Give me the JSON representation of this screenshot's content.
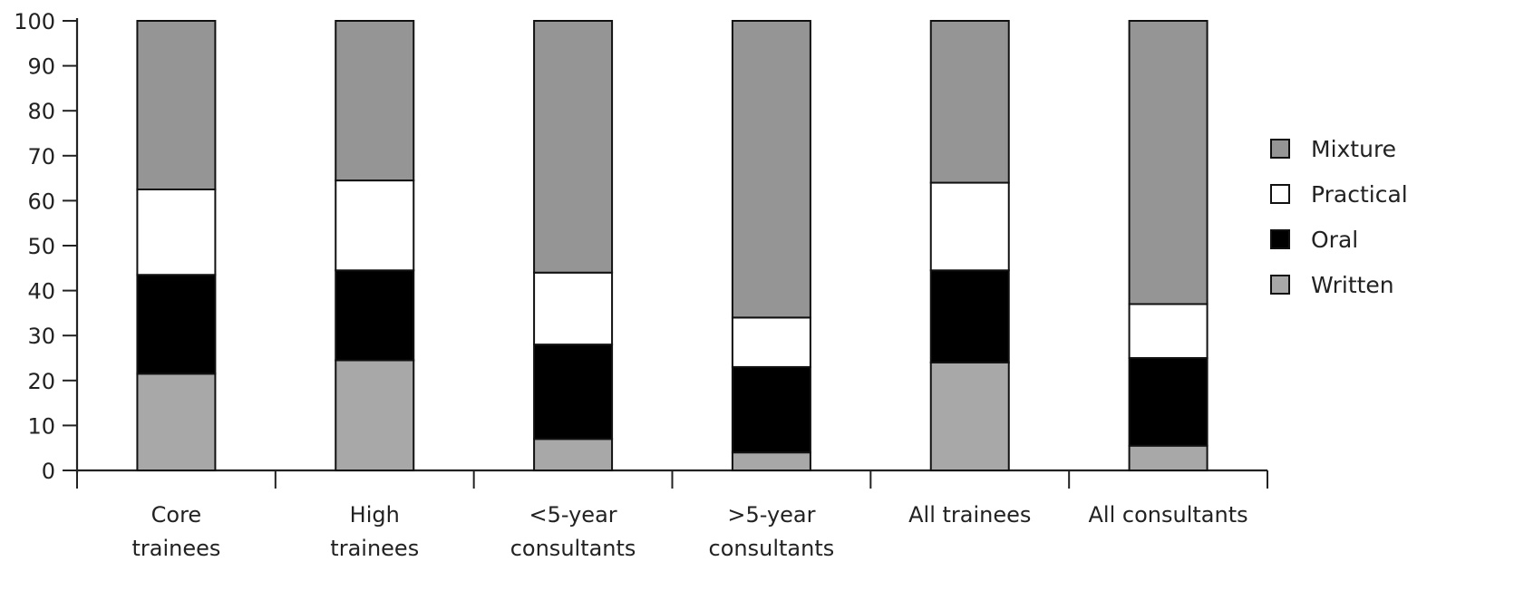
{
  "chart_data": {
    "type": "bar",
    "stacked": true,
    "title": "",
    "xlabel": "",
    "ylabel": "",
    "ylim": [
      0,
      100
    ],
    "yticks": [
      0,
      10,
      20,
      30,
      40,
      50,
      60,
      70,
      80,
      90,
      100
    ],
    "categories": [
      [
        "Core",
        "trainees"
      ],
      [
        "High",
        "trainees"
      ],
      [
        "<5-year",
        "consultants"
      ],
      [
        ">5-year",
        "consultants"
      ],
      [
        "All trainees"
      ],
      [
        "All consultants"
      ]
    ],
    "series": [
      {
        "name": "Written",
        "color": "#a8a8a8",
        "values": [
          21.5,
          24.5,
          7,
          4,
          24,
          5.5
        ]
      },
      {
        "name": "Oral",
        "color": "#000000",
        "values": [
          22,
          20,
          21,
          19,
          20.5,
          19.5
        ]
      },
      {
        "name": "Practical",
        "color": "#ffffff",
        "values": [
          19,
          20,
          16,
          11,
          19.5,
          12
        ]
      },
      {
        "name": "Mixture",
        "color": "#959595",
        "values": [
          37.5,
          35.5,
          56,
          66,
          36,
          63
        ]
      }
    ],
    "legend": {
      "placement": "right",
      "order": [
        "Mixture",
        "Practical",
        "Oral",
        "Written"
      ]
    },
    "grid": false
  }
}
